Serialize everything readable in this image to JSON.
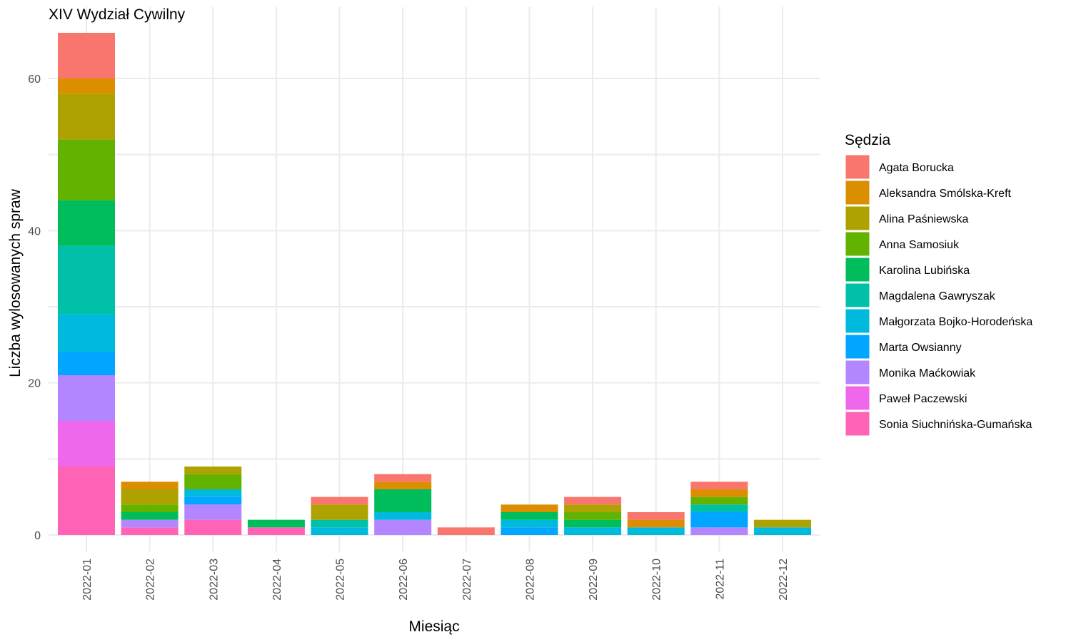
{
  "chart_data": {
    "type": "bar",
    "stacked": true,
    "title": "XIV Wydział Cywilny",
    "xlabel": "Miesiąc",
    "ylabel": "Liczba wylosowanych spraw",
    "ylim": [
      0,
      66
    ],
    "yticks": [
      0,
      20,
      40,
      60
    ],
    "grid": true,
    "legend_title": "Sędzia",
    "legend_position": "right",
    "categories": [
      "2022-01",
      "2022-02",
      "2022-03",
      "2022-04",
      "2022-05",
      "2022-06",
      "2022-07",
      "2022-08",
      "2022-09",
      "2022-10",
      "2022-11",
      "2022-12"
    ],
    "series": [
      {
        "name": "Agata Borucka",
        "color": "#F8766D",
        "values": [
          6,
          0,
          0,
          0,
          1,
          1,
          1,
          0,
          1,
          1,
          1,
          0
        ]
      },
      {
        "name": "Aleksandra Smólska-Kreft",
        "color": "#DB8E00",
        "values": [
          2,
          1,
          0,
          0,
          0,
          1,
          0,
          1,
          0,
          1,
          1,
          0
        ]
      },
      {
        "name": "Alina Paśniewska",
        "color": "#AEA200",
        "values": [
          6,
          2,
          1,
          0,
          2,
          0,
          0,
          0,
          1,
          0,
          0,
          1
        ]
      },
      {
        "name": "Anna Samosiuk",
        "color": "#64B200",
        "values": [
          8,
          1,
          2,
          0,
          0,
          0,
          0,
          0,
          1,
          0,
          1,
          0
        ]
      },
      {
        "name": "Karolina Lubińska",
        "color": "#00BD5C",
        "values": [
          6,
          1,
          0,
          1,
          0,
          3,
          0,
          1,
          1,
          0,
          0,
          0
        ]
      },
      {
        "name": "Magdalena Gawryszak",
        "color": "#00C1A7",
        "values": [
          9,
          0,
          0,
          0,
          1,
          0,
          0,
          0,
          0,
          0,
          1,
          0
        ]
      },
      {
        "name": "Małgorzata Bojko-Horodeńska",
        "color": "#00BADE",
        "values": [
          5,
          0,
          1,
          0,
          1,
          1,
          0,
          1,
          1,
          1,
          0,
          1
        ]
      },
      {
        "name": "Marta Owsianny",
        "color": "#00A6FF",
        "values": [
          3,
          0,
          1,
          0,
          0,
          0,
          0,
          1,
          0,
          0,
          2,
          0
        ]
      },
      {
        "name": "Monika Maćkowiak",
        "color": "#B385FF",
        "values": [
          6,
          1,
          2,
          0,
          0,
          2,
          0,
          0,
          0,
          0,
          1,
          0
        ]
      },
      {
        "name": "Paweł Paczewski",
        "color": "#EF67EB",
        "values": [
          6,
          0,
          0,
          0,
          0,
          0,
          0,
          0,
          0,
          0,
          0,
          0
        ]
      },
      {
        "name": "Sonia Siuchnińska-Gumańska",
        "color": "#FF63B6",
        "values": [
          9,
          1,
          2,
          1,
          0,
          0,
          0,
          0,
          0,
          0,
          0,
          0
        ]
      }
    ]
  }
}
